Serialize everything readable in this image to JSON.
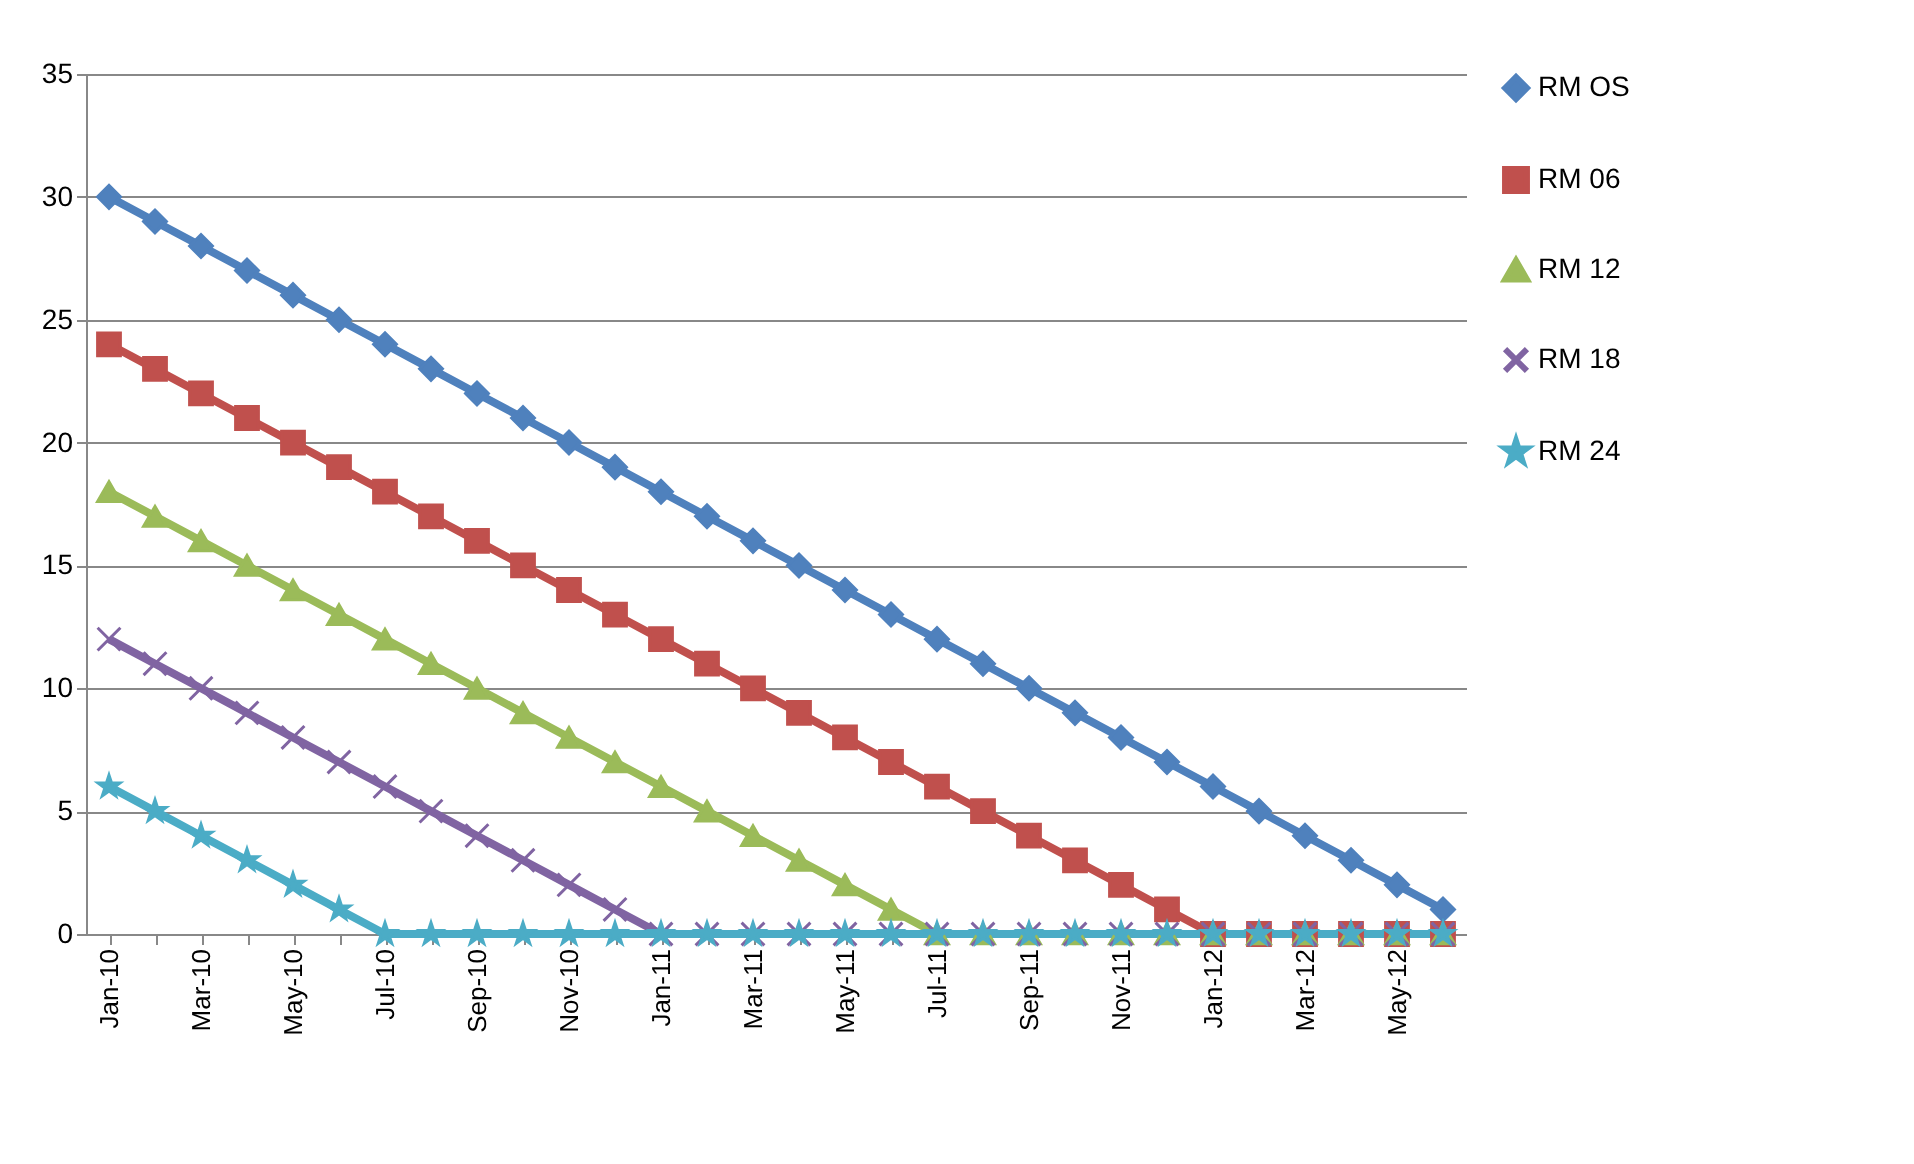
{
  "chart_data": {
    "type": "line",
    "categories": [
      "Jan-10",
      null,
      "Mar-10",
      null,
      "May-10",
      null,
      "Jul-10",
      null,
      "Sep-10",
      null,
      "Nov-10",
      null,
      "Jan-11",
      null,
      "Mar-11",
      null,
      "May-11",
      null,
      "Jul-11",
      null,
      "Sep-11",
      null,
      "Nov-11",
      null,
      "Jan-12",
      null,
      "Mar-12",
      null,
      "May-12",
      null
    ],
    "series": [
      {
        "name": "RM OS",
        "color": "#4f81bd",
        "marker": "diamond",
        "values": [
          30,
          29,
          28,
          27,
          26,
          25,
          24,
          23,
          22,
          21,
          20,
          19,
          18,
          17,
          16,
          15,
          14,
          13,
          12,
          11,
          10,
          9,
          8,
          7,
          6,
          5,
          4,
          3,
          2,
          1
        ]
      },
      {
        "name": "RM 06",
        "color": "#c0504d",
        "marker": "square",
        "values": [
          24,
          23,
          22,
          21,
          20,
          19,
          18,
          17,
          16,
          15,
          14,
          13,
          12,
          11,
          10,
          9,
          8,
          7,
          6,
          5,
          4,
          3,
          2,
          1,
          0,
          0,
          0,
          0,
          0,
          0
        ]
      },
      {
        "name": "RM 12",
        "color": "#9bbb59",
        "marker": "triangle",
        "values": [
          18,
          17,
          16,
          15,
          14,
          13,
          12,
          11,
          10,
          9,
          8,
          7,
          6,
          5,
          4,
          3,
          2,
          1,
          0,
          0,
          0,
          0,
          0,
          0,
          0,
          0,
          0,
          0,
          0,
          0
        ]
      },
      {
        "name": "RM 18",
        "color": "#8064a2",
        "marker": "cross",
        "values": [
          12,
          11,
          10,
          9,
          8,
          7,
          6,
          5,
          4,
          3,
          2,
          1,
          0,
          0,
          0,
          0,
          0,
          0,
          0,
          0,
          0,
          0,
          0,
          0,
          0,
          0,
          0,
          0,
          0,
          0
        ]
      },
      {
        "name": "RM 24",
        "color": "#4bacc6",
        "marker": "star",
        "values": [
          6,
          5,
          4,
          3,
          2,
          1,
          0,
          0,
          0,
          0,
          0,
          0,
          0,
          0,
          0,
          0,
          0,
          0,
          0,
          0,
          0,
          0,
          0,
          0,
          0,
          0,
          0,
          0,
          0,
          0
        ]
      }
    ],
    "ylim": [
      0,
      35
    ],
    "yticks": [
      0,
      5,
      10,
      15,
      20,
      25,
      30,
      35
    ],
    "grid": "y",
    "legend": "right"
  }
}
